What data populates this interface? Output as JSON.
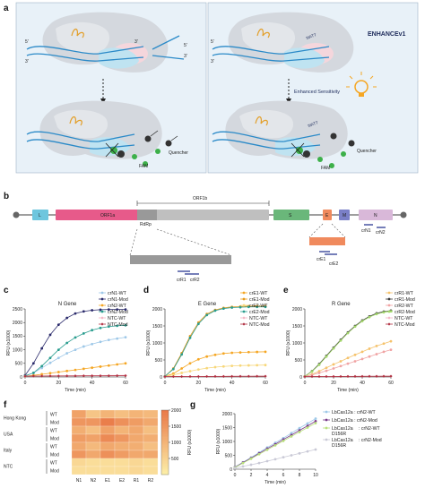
{
  "panel_a": {
    "label": "a",
    "right_title": "ENHANCEv1",
    "enhanced_sensitivity": "Enhanced Sensitivity",
    "fam_label": "FAM",
    "quencher_label": "Quencher",
    "strand_5": "5'",
    "strand_3": "3'",
    "tttatt": "tttATT"
  },
  "panel_b": {
    "label": "b",
    "orf1b": "ORF1b",
    "genes": [
      "L",
      "ORF1a",
      "RdRp",
      "S",
      "E",
      "M",
      "N"
    ],
    "primers_rdrp": [
      "crR1",
      "crR2"
    ],
    "primers_e": [
      "crE1",
      "crE2"
    ],
    "primers_n": [
      "crN1",
      "crN2"
    ]
  },
  "colors": {
    "wt_lightblue": "#9ec8e8",
    "mod_navy": "#2a2a6b",
    "orange": "#f5a623",
    "teal": "#2a9d8f",
    "ntc_pink": "#f3b3c3",
    "ntc_red": "#b03040",
    "orf1a": "#e75a8a",
    "s_gene": "#6ab77a",
    "e_gene": "#f08a5d",
    "m_gene": "#7a7fc7",
    "n_gene": "#d9b8d9",
    "l_gene": "#6ec6de"
  },
  "panel_c": {
    "label": "c",
    "chart_data": {
      "type": "line",
      "title": "N Gene",
      "xlabel": "Time (min)",
      "ylabel": "RFU (x1000)",
      "xlim": [
        0,
        60
      ],
      "ylim": [
        0,
        2500
      ],
      "xticks": [
        "0",
        "20",
        "40",
        "60"
      ],
      "yticks": [
        "0",
        "500",
        "1000",
        "1500",
        "2000",
        "2500"
      ],
      "x": [
        0,
        5,
        10,
        15,
        20,
        25,
        30,
        35,
        40,
        45,
        50,
        55,
        60
      ],
      "series": [
        {
          "name": "crN1-WT",
          "values": [
            40,
            150,
            330,
            520,
            700,
            870,
            1000,
            1120,
            1210,
            1290,
            1360,
            1410,
            1460
          ]
        },
        {
          "name": "crN1-Mod",
          "values": [
            60,
            500,
            1050,
            1550,
            1920,
            2170,
            2330,
            2410,
            2450,
            2470,
            2480,
            2480,
            2480
          ]
        },
        {
          "name": "crN2-WT",
          "values": [
            30,
            60,
            100,
            140,
            180,
            220,
            260,
            300,
            340,
            380,
            420,
            460,
            500
          ]
        },
        {
          "name": "crN2-Mod",
          "values": [
            40,
            150,
            400,
            700,
            1000,
            1250,
            1450,
            1600,
            1720,
            1800,
            1850,
            1880,
            1900
          ]
        },
        {
          "name": "NTC-WT",
          "values": [
            30,
            35,
            38,
            40,
            42,
            45,
            47,
            50,
            52,
            54,
            56,
            58,
            60
          ]
        },
        {
          "name": "NTC-Mod",
          "values": [
            30,
            32,
            34,
            35,
            36,
            37,
            38,
            40,
            41,
            42,
            43,
            44,
            45
          ]
        }
      ]
    }
  },
  "panel_d": {
    "label": "d",
    "chart_data": {
      "type": "line",
      "title": "E Gene",
      "xlabel": "Time (min)",
      "ylabel": "RFU (x1000)",
      "xlim": [
        0,
        60
      ],
      "ylim": [
        0,
        2000
      ],
      "xticks": [
        "0",
        "20",
        "40",
        "60"
      ],
      "yticks": [
        "0",
        "500",
        "1000",
        "1500",
        "2000"
      ],
      "x": [
        0,
        5,
        10,
        15,
        20,
        25,
        30,
        35,
        40,
        45,
        50,
        55,
        60
      ],
      "series": [
        {
          "name": "crE1-WT",
          "values": [
            20,
            100,
            250,
            400,
            520,
            600,
            650,
            690,
            710,
            720,
            730,
            735,
            740
          ]
        },
        {
          "name": "crE1-Mod",
          "values": [
            20,
            250,
            700,
            1200,
            1600,
            1850,
            1970,
            2030,
            2060,
            2070,
            2080,
            2080,
            2080
          ]
        },
        {
          "name": "crE2-WT",
          "values": [
            20,
            60,
            120,
            170,
            220,
            260,
            290,
            310,
            325,
            335,
            340,
            345,
            350
          ]
        },
        {
          "name": "crE2-Mod",
          "values": [
            20,
            230,
            660,
            1150,
            1560,
            1820,
            1950,
            2010,
            2040,
            2050,
            2060,
            2060,
            2060
          ]
        },
        {
          "name": "NTC-WT",
          "values": [
            10,
            12,
            14,
            15,
            16,
            17,
            18,
            19,
            20,
            21,
            22,
            23,
            24
          ]
        },
        {
          "name": "NTC-Mod",
          "values": [
            10,
            11,
            12,
            13,
            14,
            15,
            16,
            17,
            18,
            19,
            20,
            21,
            22
          ]
        }
      ]
    }
  },
  "panel_e": {
    "label": "e",
    "chart_data": {
      "type": "line",
      "title": "R Gene",
      "xlabel": "Time (min)",
      "ylabel": "RFU (x1000)",
      "xlim": [
        0,
        60
      ],
      "ylim": [
        0,
        2000
      ],
      "xticks": [
        "0",
        "20",
        "40",
        "60"
      ],
      "yticks": [
        "0",
        "500",
        "1000",
        "1500",
        "2000"
      ],
      "x": [
        0,
        5,
        10,
        15,
        20,
        25,
        30,
        35,
        40,
        45,
        50,
        55,
        60
      ],
      "series": [
        {
          "name": "crR1-WT",
          "values": [
            20,
            80,
            170,
            270,
            370,
            460,
            560,
            650,
            740,
            830,
            910,
            980,
            1050
          ]
        },
        {
          "name": "crR1-Mod",
          "values": [
            20,
            170,
            380,
            620,
            860,
            1090,
            1310,
            1500,
            1660,
            1780,
            1870,
            1920,
            1950
          ]
        },
        {
          "name": "crR2-WT",
          "values": [
            20,
            60,
            120,
            180,
            250,
            320,
            390,
            460,
            530,
            600,
            670,
            740,
            800
          ]
        },
        {
          "name": "crR2-Mod",
          "values": [
            20,
            160,
            360,
            600,
            840,
            1070,
            1290,
            1480,
            1640,
            1760,
            1850,
            1900,
            1930
          ]
        },
        {
          "name": "NTC-WT",
          "values": [
            10,
            12,
            14,
            15,
            16,
            17,
            18,
            19,
            20,
            21,
            22,
            23,
            24
          ]
        },
        {
          "name": "NTC-Mod",
          "values": [
            10,
            11,
            12,
            13,
            14,
            15,
            16,
            17,
            18,
            19,
            20,
            21,
            22
          ]
        }
      ]
    }
  },
  "panel_f": {
    "label": "f",
    "chart_data": {
      "type": "heatmap",
      "columns": [
        "N1",
        "N2",
        "E1",
        "E2",
        "R1",
        "R2"
      ],
      "row_groups": [
        {
          "name": "Hong Kong",
          "rows": [
            "WT",
            "Mod"
          ]
        },
        {
          "name": "USA",
          "rows": [
            "WT",
            "Mod"
          ]
        },
        {
          "name": "Italy",
          "rows": [
            "WT",
            "Mod"
          ]
        },
        {
          "name": "NTC",
          "rows": [
            "WT",
            "Mod"
          ]
        }
      ],
      "values": [
        [
          1300,
          700,
          1000,
          800,
          1000,
          900
        ],
        [
          1500,
          1500,
          1900,
          1600,
          1400,
          1200
        ],
        [
          1100,
          800,
          1300,
          1000,
          1200,
          800
        ],
        [
          1400,
          1300,
          1700,
          1500,
          1200,
          1100
        ],
        [
          1200,
          900,
          1200,
          1100,
          1100,
          800
        ],
        [
          1500,
          1200,
          1600,
          1400,
          1200,
          1200
        ],
        [
          400,
          300,
          300,
          300,
          400,
          300
        ],
        [
          300,
          300,
          300,
          300,
          400,
          300
        ]
      ],
      "colorbar_label": "RFU (x1000)",
      "colorbar_ticks": [
        "500",
        "1000",
        "1500",
        "2000"
      ],
      "zlim": [
        0,
        2000
      ]
    }
  },
  "panel_g": {
    "label": "g",
    "chart_data": {
      "type": "line",
      "xlabel": "Time (min)",
      "ylabel": "RFU (x1000)",
      "xlim": [
        0,
        10
      ],
      "ylim": [
        0,
        2000
      ],
      "xticks": [
        "0",
        "2",
        "4",
        "6",
        "8",
        "10"
      ],
      "yticks": [
        "0",
        "500",
        "1000",
        "1500",
        "2000"
      ],
      "x": [
        0,
        1,
        2,
        3,
        4,
        5,
        6,
        7,
        8,
        9,
        10
      ],
      "series": [
        {
          "name": "LbCas12a : crN2-WT",
          "values": [
            80,
            250,
            420,
            600,
            780,
            950,
            1120,
            1300,
            1480,
            1650,
            1820
          ]
        },
        {
          "name": "LbCas12a : crN2-Mod",
          "values": [
            70,
            240,
            400,
            570,
            740,
            900,
            1070,
            1230,
            1400,
            1560,
            1730
          ]
        },
        {
          "name": "LbCas12a D156R : crN2-WT",
          "values": [
            60,
            220,
            380,
            540,
            700,
            860,
            1020,
            1180,
            1340,
            1500,
            1660
          ]
        },
        {
          "name": "LbCas12a D156R : crN2-Mod",
          "values": [
            40,
            100,
            160,
            220,
            290,
            360,
            430,
            500,
            570,
            640,
            710
          ]
        }
      ],
      "legend_lines": [
        [
          "LbCas12a : crN2-WT"
        ],
        [
          "LbCas12a : crN2-Mod"
        ],
        [
          "LbCas12a",
          "D156R",
          ": crN2-WT"
        ],
        [
          "LbCas12a",
          "D156R",
          ": crN2-Mod"
        ]
      ]
    }
  }
}
